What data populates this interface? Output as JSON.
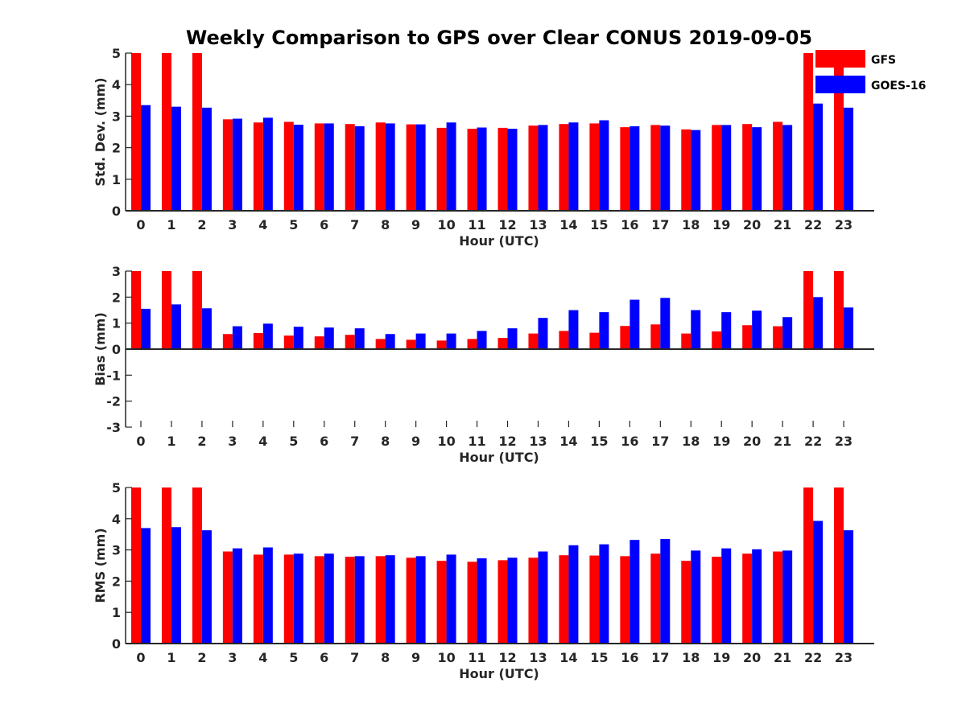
{
  "chart_data": {
    "type": "bar",
    "title": "Weekly Comparison to GPS over Clear CONUS 2019-09-05",
    "colors": {
      "GFS": "#ff0000",
      "GOES-16": "#0000ff"
    },
    "legend": {
      "position": "top-right",
      "entries": [
        "GFS",
        "GOES-16"
      ]
    },
    "categories": [
      "0",
      "1",
      "2",
      "3",
      "4",
      "5",
      "6",
      "7",
      "8",
      "9",
      "10",
      "11",
      "12",
      "13",
      "14",
      "15",
      "16",
      "17",
      "18",
      "19",
      "20",
      "21",
      "22",
      "23"
    ],
    "panels": [
      {
        "name": "stddev",
        "ylabel": "Std. Dev. (mm)",
        "xlabel": "Hour (UTC)",
        "ylim": [
          0,
          5
        ],
        "yticks": [
          "0",
          "1",
          "2",
          "3",
          "4",
          "5"
        ],
        "series": [
          {
            "name": "GFS",
            "values": [
              5,
              5,
              5,
              2.9,
              2.8,
              2.82,
              2.77,
              2.75,
              2.8,
              2.74,
              2.63,
              2.6,
              2.63,
              2.7,
              2.75,
              2.77,
              2.65,
              2.72,
              2.58,
              2.72,
              2.75,
              2.82,
              5,
              5
            ]
          },
          {
            "name": "GOES-16",
            "values": [
              3.35,
              3.3,
              3.27,
              2.92,
              2.95,
              2.73,
              2.77,
              2.68,
              2.77,
              2.74,
              2.8,
              2.64,
              2.6,
              2.72,
              2.8,
              2.87,
              2.68,
              2.7,
              2.56,
              2.72,
              2.65,
              2.72,
              3.4,
              3.27
            ]
          }
        ]
      },
      {
        "name": "bias",
        "ylabel": "Bias (mm)",
        "xlabel": "Hour (UTC)",
        "ylim": [
          -3,
          3
        ],
        "yticks": [
          "-3",
          "-2",
          "-1",
          "0",
          "1",
          "2",
          "3"
        ],
        "series": [
          {
            "name": "GFS",
            "values": [
              3,
              3,
              3,
              0.58,
              0.62,
              0.52,
              0.49,
              0.55,
              0.39,
              0.36,
              0.33,
              0.39,
              0.43,
              0.6,
              0.7,
              0.63,
              0.89,
              0.95,
              0.6,
              0.68,
              0.92,
              0.88,
              3,
              3
            ]
          },
          {
            "name": "GOES-16",
            "values": [
              1.55,
              1.72,
              1.57,
              0.88,
              0.98,
              0.86,
              0.83,
              0.8,
              0.58,
              0.6,
              0.6,
              0.7,
              0.8,
              1.2,
              1.5,
              1.42,
              1.9,
              1.97,
              1.5,
              1.42,
              1.48,
              1.23,
              2.0,
              1.6
            ]
          }
        ]
      },
      {
        "name": "rms",
        "ylabel": "RMS (mm)",
        "xlabel": "Hour (UTC)",
        "ylim": [
          0,
          5
        ],
        "yticks": [
          "0",
          "1",
          "2",
          "3",
          "4",
          "5"
        ],
        "series": [
          {
            "name": "GFS",
            "values": [
              5,
              5,
              5,
              2.95,
              2.85,
              2.85,
              2.8,
              2.78,
              2.8,
              2.75,
              2.65,
              2.62,
              2.67,
              2.75,
              2.83,
              2.82,
              2.8,
              2.88,
              2.65,
              2.78,
              2.88,
              2.95,
              5,
              5
            ]
          },
          {
            "name": "GOES-16",
            "values": [
              3.7,
              3.73,
              3.63,
              3.05,
              3.08,
              2.88,
              2.88,
              2.8,
              2.83,
              2.8,
              2.85,
              2.73,
              2.75,
              2.95,
              3.15,
              3.18,
              3.32,
              3.35,
              2.98,
              3.05,
              3.02,
              2.98,
              3.93,
              3.63
            ]
          }
        ]
      }
    ]
  }
}
